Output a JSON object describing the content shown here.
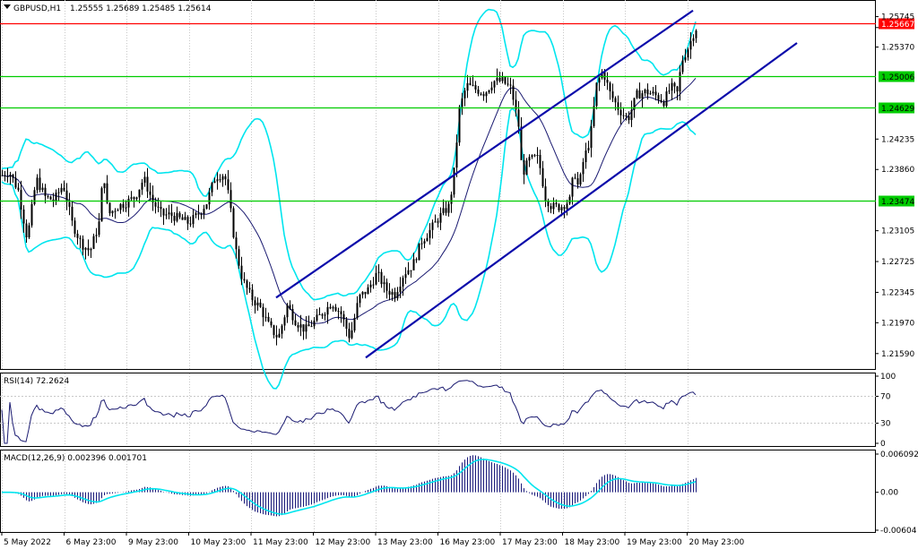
{
  "header": {
    "symbol": "GBPUSD,H1",
    "ohlc": "1.25555 1.25689 1.25485 1.25614"
  },
  "chart_data": {
    "type": "candlestick",
    "price_axis_ticks": [
      "1.25745",
      "1.25370",
      "1.24235",
      "1.23860",
      "1.23105",
      "1.22725",
      "1.22345",
      "1.21970",
      "1.21590"
    ],
    "price_ylim": [
      1.214,
      1.2595
    ],
    "horizontal_levels": [
      {
        "value": 1.25667,
        "label": "1.25667",
        "color": "#ff0000",
        "label_bg": "#ff0000",
        "label_fg": "#ffffff"
      },
      {
        "value": 1.25006,
        "label": "1.25006",
        "color": "#00cc00",
        "label_bg": "#00cc00",
        "label_fg": "#000000"
      },
      {
        "value": 1.24629,
        "label": "1.24629",
        "color": "#00cc00",
        "label_bg": "#00cc00",
        "label_fg": "#000000"
      },
      {
        "value": 1.23474,
        "label": "1.23474",
        "color": "#00cc00",
        "label_bg": "#00cc00",
        "label_fg": "#000000"
      }
    ],
    "time_axis_ticks": [
      "5 May 2022",
      "6 May 23:00",
      "9 May 23:00",
      "10 May 23:00",
      "11 May 23:00",
      "12 May 23:00",
      "13 May 23:00",
      "16 May 23:00",
      "17 May 23:00",
      "18 May 23:00",
      "19 May 23:00",
      "20 May 23:00"
    ],
    "close_path": [
      [
        0,
        1.2378
      ],
      [
        10,
        1.2383
      ],
      [
        20,
        1.236
      ],
      [
        30,
        1.23
      ],
      [
        40,
        1.2375
      ],
      [
        50,
        1.2352
      ],
      [
        60,
        1.2348
      ],
      [
        70,
        1.2368
      ],
      [
        80,
        1.232
      ],
      [
        90,
        1.2295
      ],
      [
        100,
        1.2285
      ],
      [
        110,
        1.232
      ],
      [
        115,
        1.2385
      ],
      [
        120,
        1.233
      ],
      [
        130,
        1.234
      ],
      [
        140,
        1.2345
      ],
      [
        150,
        1.2352
      ],
      [
        160,
        1.2375
      ],
      [
        170,
        1.2346
      ],
      [
        180,
        1.233
      ],
      [
        190,
        1.233
      ],
      [
        200,
        1.2325
      ],
      [
        210,
        1.232
      ],
      [
        220,
        1.233
      ],
      [
        230,
        1.2345
      ],
      [
        240,
        1.2378
      ],
      [
        250,
        1.238
      ],
      [
        255,
        1.235
      ],
      [
        262,
        1.229
      ],
      [
        270,
        1.225
      ],
      [
        280,
        1.2228
      ],
      [
        290,
        1.2215
      ],
      [
        300,
        1.2192
      ],
      [
        310,
        1.2178
      ],
      [
        320,
        1.2218
      ],
      [
        330,
        1.2198
      ],
      [
        340,
        1.2188
      ],
      [
        350,
        1.2198
      ],
      [
        360,
        1.221
      ],
      [
        370,
        1.2222
      ],
      [
        380,
        1.2208
      ],
      [
        390,
        1.2178
      ],
      [
        400,
        1.2228
      ],
      [
        410,
        1.2238
      ],
      [
        420,
        1.2258
      ],
      [
        430,
        1.2238
      ],
      [
        440,
        1.2232
      ],
      [
        450,
        1.2258
      ],
      [
        460,
        1.2268
      ],
      [
        470,
        1.2298
      ],
      [
        480,
        1.2312
      ],
      [
        490,
        1.2328
      ],
      [
        500,
        1.234
      ],
      [
        505,
        1.237
      ],
      [
        512,
        1.246
      ],
      [
        520,
        1.249
      ],
      [
        530,
        1.2485
      ],
      [
        540,
        1.248
      ],
      [
        550,
        1.2495
      ],
      [
        560,
        1.2495
      ],
      [
        570,
        1.2485
      ],
      [
        578,
        1.244
      ],
      [
        582,
        1.238
      ],
      [
        590,
        1.2398
      ],
      [
        600,
        1.24
      ],
      [
        608,
        1.2352
      ],
      [
        615,
        1.234
      ],
      [
        625,
        1.234
      ],
      [
        635,
        1.2348
      ],
      [
        640,
        1.2385
      ],
      [
        645,
        1.2362
      ],
      [
        650,
        1.2395
      ],
      [
        658,
        1.2425
      ],
      [
        665,
        1.249
      ],
      [
        672,
        1.2508
      ],
      [
        680,
        1.248
      ],
      [
        690,
        1.246
      ],
      [
        700,
        1.2448
      ],
      [
        710,
        1.2478
      ],
      [
        720,
        1.2482
      ],
      [
        730,
        1.2478
      ],
      [
        740,
        1.247
      ],
      [
        748,
        1.2488
      ],
      [
        755,
        1.248
      ],
      [
        760,
        1.252
      ],
      [
        768,
        1.2538
      ],
      [
        775,
        1.256
      ],
      [
        778,
        1.2561
      ]
    ],
    "rsi": {
      "label": "RSI(14) 72.2624",
      "period": 14,
      "value": 72.2624,
      "ticks": [
        "100",
        "70",
        "30",
        "0"
      ],
      "ylim": [
        0,
        100
      ]
    },
    "macd": {
      "label": "MACD(12,26,9) 0.002396 0.001701",
      "params": [
        12,
        26,
        9
      ],
      "macd": 0.002396,
      "signal": 0.001701,
      "ticks": [
        "0.006092",
        "0.00",
        "-0.00604"
      ],
      "ylim": [
        -0.00604,
        0.006092
      ]
    }
  },
  "colors": {
    "price": "#000000",
    "bollinger": "#00e5ee",
    "ma": "#191970",
    "channel": "#0a0aaa",
    "red": "#ff0000",
    "green": "#00cc00",
    "signal": "#00e5ee",
    "hist": "#1a1a7a",
    "grid": "#c8c8c8"
  }
}
